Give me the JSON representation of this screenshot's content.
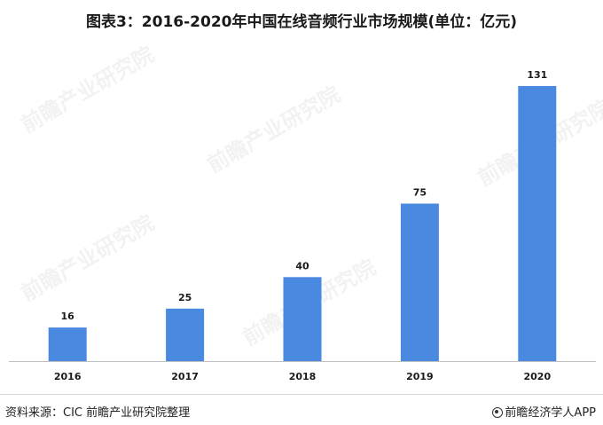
{
  "title": "图表3：2016-2020年中国在线音频行业市场规模(单位：亿元)",
  "footer": {
    "source": "资料来源：CIC 前瞻产业研究院整理",
    "app": "前瞻经济学人APP"
  },
  "watermark": {
    "brand": "前瞻产业研究院"
  },
  "colors": {
    "bar": "#4a89e0",
    "axis": "#bfbfbf"
  },
  "chart_data": {
    "type": "bar",
    "title": "图表3：2016-2020年中国在线音频行业市场规模(单位：亿元)",
    "xlabel": "",
    "ylabel": "",
    "categories": [
      "2016",
      "2017",
      "2018",
      "2019",
      "2020"
    ],
    "values": [
      16,
      25,
      40,
      75,
      131
    ],
    "data_labels": [
      "16",
      "25",
      "40",
      "75",
      "131"
    ],
    "ylim": [
      0,
      150
    ],
    "grid": false,
    "legend": "none"
  }
}
